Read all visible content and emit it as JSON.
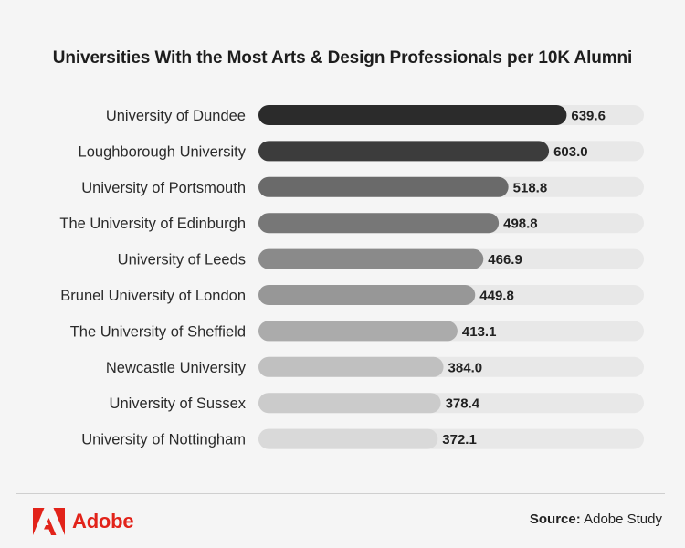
{
  "brand": {
    "name": "Adobe",
    "color": "#e2231a"
  },
  "source": {
    "label": "Source:",
    "value": "Adobe Study"
  },
  "chart_data": {
    "type": "bar",
    "orientation": "horizontal",
    "title": "Universities With the Most Arts & Design Professionals per 10K Alumni",
    "categories": [
      "University of Dundee",
      "Loughborough University",
      "University of Portsmouth",
      "The University of Edinburgh",
      "University of Leeds",
      "Brunel University of London",
      "The University of Sheffield",
      "Newcastle University",
      "University of Sussex",
      "University of Nottingham"
    ],
    "values": [
      639.6,
      603.0,
      518.8,
      498.8,
      466.9,
      449.8,
      413.1,
      384.0,
      378.4,
      372.1
    ],
    "value_labels": [
      "639.6",
      "603.0",
      "518.8",
      "498.8",
      "466.9",
      "449.8",
      "413.1",
      "384.0",
      "378.4",
      "372.1"
    ],
    "bar_colors": [
      "#2b2b2b",
      "#3c3c3c",
      "#6a6a6a",
      "#777777",
      "#8a8a8a",
      "#979797",
      "#ababab",
      "#c0c0c0",
      "#cbcbcb",
      "#d9d9d9"
    ],
    "track_color": "#e8e8e8",
    "xlim": [
      0,
      800
    ],
    "xlabel": "",
    "ylabel": "",
    "grid": false,
    "legend": "none"
  }
}
